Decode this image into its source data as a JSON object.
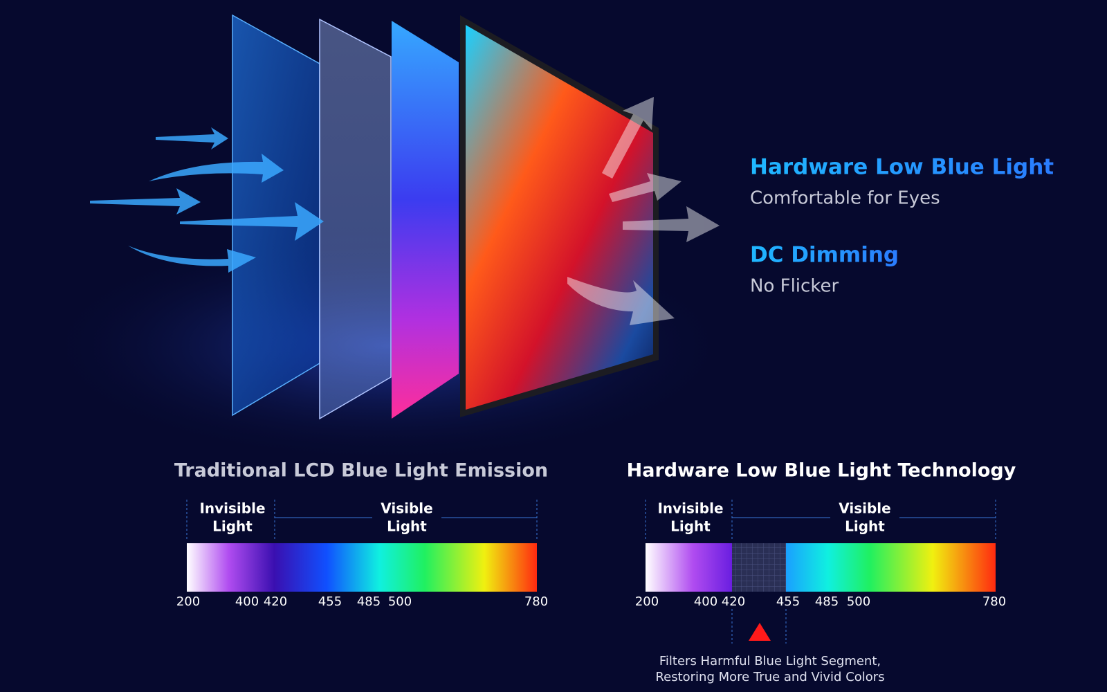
{
  "features": [
    {
      "title": "Hardware Low Blue Light",
      "subtitle": "Comfortable for Eyes"
    },
    {
      "title": "DC Dimming",
      "subtitle": "No Flicker"
    }
  ],
  "panels": [
    {
      "title": "Traditional LCD Blue Light Emission",
      "regions": [
        [
          "Invisible",
          "Light"
        ],
        [
          "Visible",
          "Light"
        ]
      ],
      "ticks": [
        200,
        400,
        420,
        455,
        485,
        500,
        780
      ]
    },
    {
      "title": "Hardware Low Blue Light Technology",
      "regions": [
        [
          "Invisible",
          "Light"
        ],
        [
          "Visible",
          "Light"
        ]
      ],
      "ticks": [
        200,
        400,
        420,
        455,
        485,
        500,
        780
      ],
      "caption": [
        "Filters Harmful Blue Light Segment,",
        "Restoring More True and Vivid Colors"
      ]
    }
  ]
}
